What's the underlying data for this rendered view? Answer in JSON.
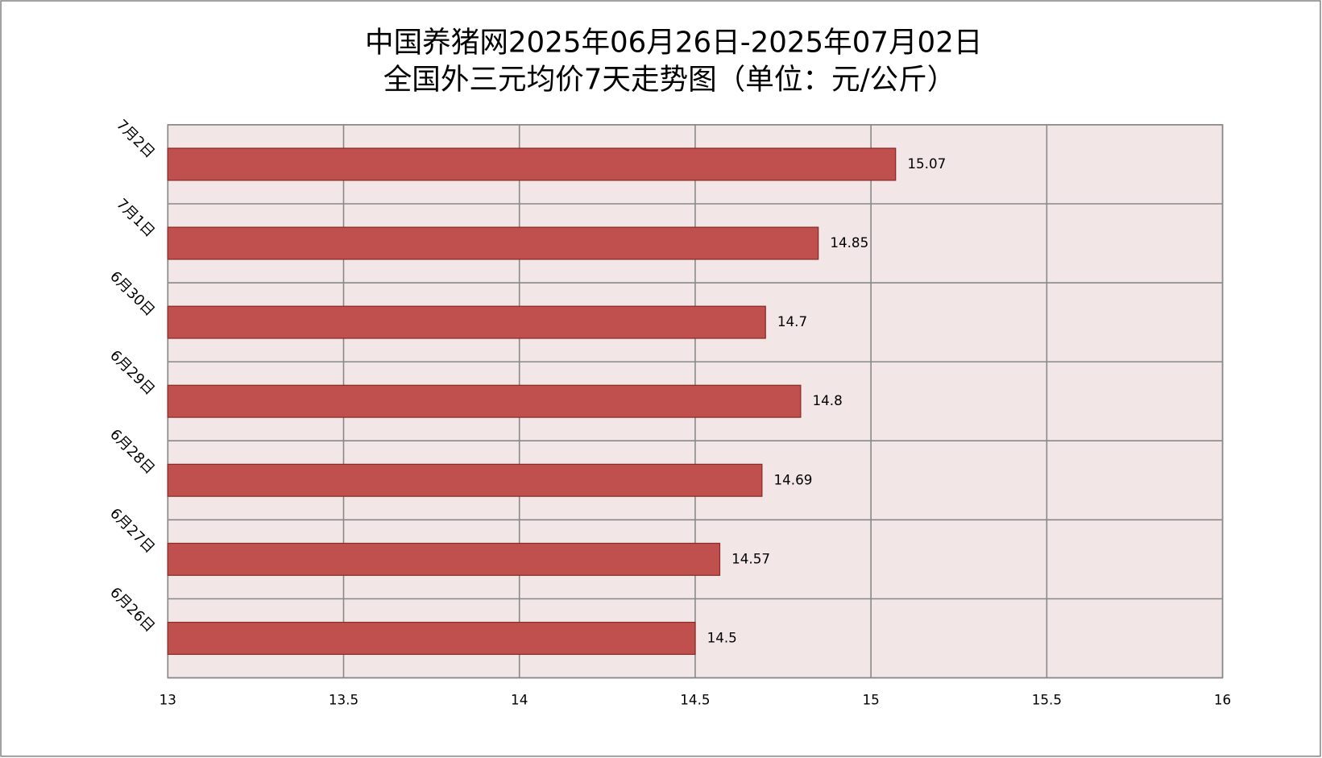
{
  "chart_data": {
    "type": "bar",
    "orientation": "horizontal",
    "title": "中国养猪网2025年06月26日-2025年07月02日",
    "subtitle": "全国外三元均价7天走势图（单位：元/公斤）",
    "categories": [
      "6月26日",
      "6月27日",
      "6月28日",
      "6月29日",
      "6月30日",
      "7月1日",
      "7月2日"
    ],
    "values": [
      14.5,
      14.57,
      14.69,
      14.8,
      14.7,
      14.85,
      15.07
    ],
    "color": "#c0504d",
    "xlim": [
      13,
      16
    ],
    "xticks": [
      13,
      13.5,
      14,
      14.5,
      15,
      15.5,
      16
    ],
    "grid": true
  }
}
